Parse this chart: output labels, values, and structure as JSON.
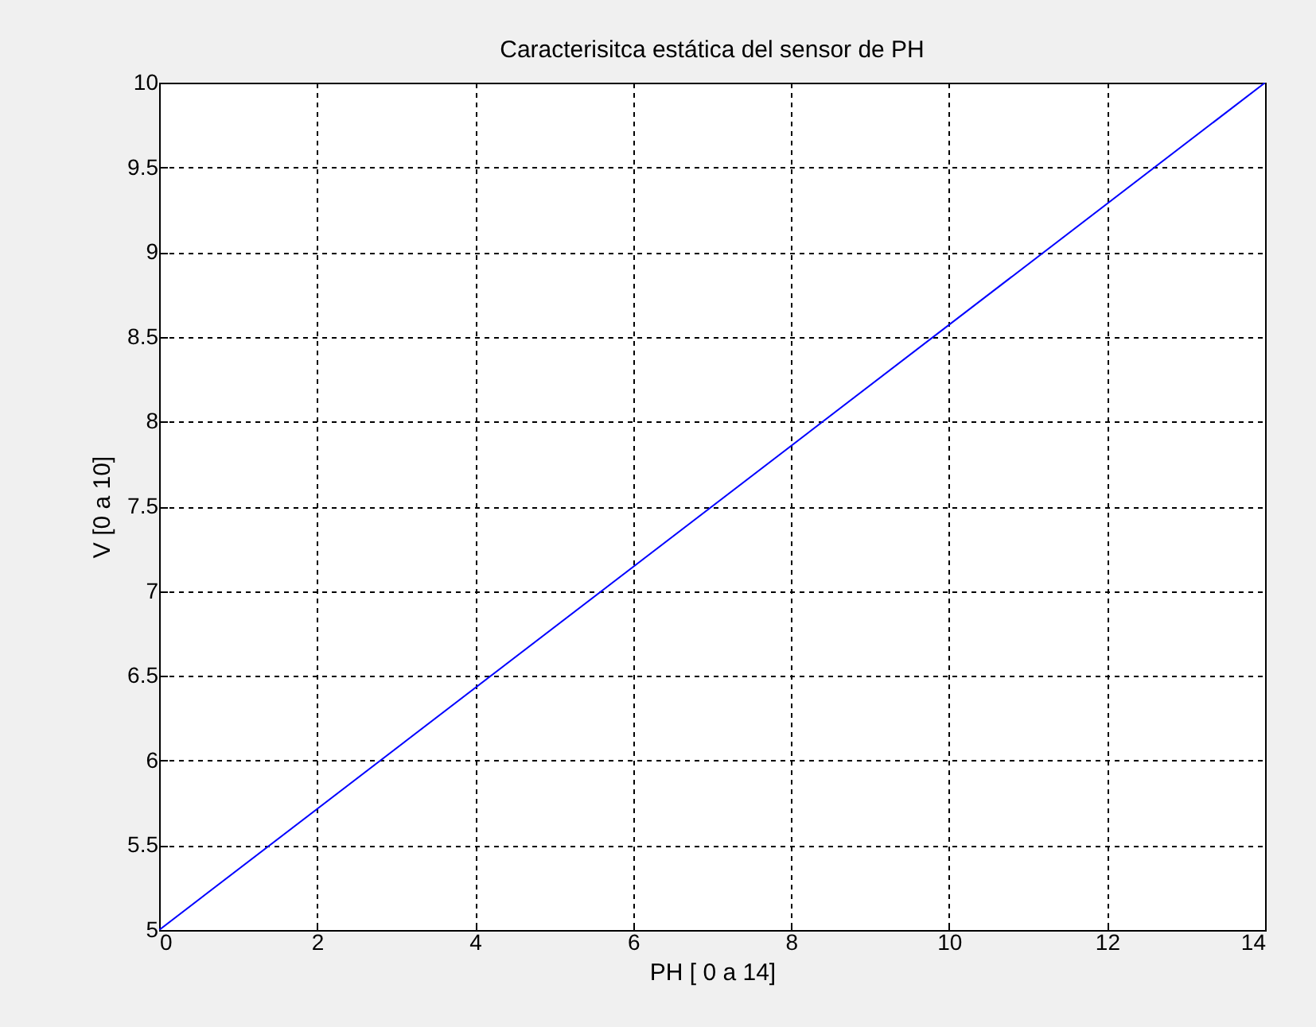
{
  "chart_data": {
    "type": "line",
    "title": "Caracterisitca estática del sensor de PH",
    "xlabel": "PH [ 0 a 14]",
    "ylabel": "V [0 a 10]",
    "x": [
      0,
      14
    ],
    "series": [
      {
        "color": "#0000ff",
        "values": [
          5,
          10
        ]
      }
    ],
    "xlim": [
      0,
      14
    ],
    "xticks": [
      0,
      2,
      4,
      6,
      8,
      10,
      12,
      14
    ],
    "ylim": [
      5,
      10
    ],
    "yticks": [
      5,
      5.5,
      6,
      6.5,
      7,
      7.5,
      8,
      8.5,
      9,
      9.5,
      10
    ],
    "grid": true,
    "marker": "none",
    "line_style": "solid"
  }
}
